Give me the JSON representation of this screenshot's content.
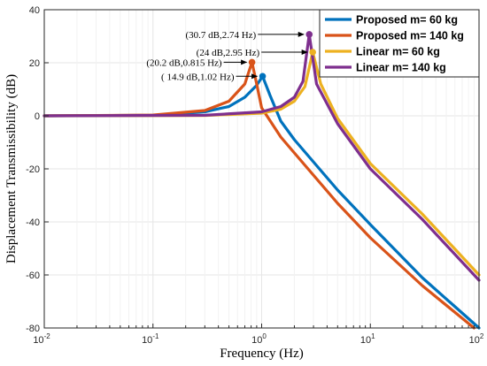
{
  "chart_data": {
    "type": "line",
    "xscale": "log",
    "xlim": [
      0.01,
      100
    ],
    "ylim": [
      -80,
      40
    ],
    "yticks": [
      -80,
      -60,
      -40,
      -20,
      0,
      20,
      40
    ],
    "xlabel": "Frequency  (Hz)",
    "ylabel": "Displacement Transmissibility (dB)",
    "grid": true,
    "legend_position": "top-right",
    "x_tick_labels": [
      {
        "base": "10",
        "exp": "-2"
      },
      {
        "base": "10",
        "exp": "-1"
      },
      {
        "base": "10",
        "exp": "0"
      },
      {
        "base": "10",
        "exp": "1"
      },
      {
        "base": "10",
        "exp": "2"
      }
    ],
    "series": [
      {
        "name": "Proposed m= 60 kg",
        "color": "#0072BD",
        "x": [
          0.01,
          0.1,
          0.3,
          0.5,
          0.7,
          0.9,
          1.02,
          1.2,
          1.5,
          2,
          5,
          10,
          30,
          100
        ],
        "y": [
          0,
          0.2,
          1.5,
          3.5,
          7,
          11.5,
          14.9,
          7.5,
          -2,
          -9,
          -28,
          -41,
          -61,
          -80
        ]
      },
      {
        "name": "Proposed m= 140 kg",
        "color": "#D95319",
        "x": [
          0.01,
          0.1,
          0.3,
          0.5,
          0.7,
          0.815,
          0.9,
          1,
          1.5,
          2,
          5,
          10,
          30,
          90
        ],
        "y": [
          0,
          0.3,
          2,
          5.5,
          12,
          20.2,
          12,
          3,
          -8,
          -14,
          -33,
          -46,
          -64,
          -80
        ]
      },
      {
        "name": "Linear m= 60 kg",
        "color": "#EDB120",
        "x": [
          0.01,
          0.3,
          1,
          1.5,
          2,
          2.5,
          2.95,
          3.5,
          5,
          10,
          30,
          100
        ],
        "y": [
          0,
          0.1,
          1,
          2.5,
          5.5,
          11,
          24,
          12,
          -1,
          -18,
          -37,
          -60
        ]
      },
      {
        "name": "Linear m= 140 kg",
        "color": "#7E2F8E",
        "x": [
          0.01,
          0.3,
          1,
          1.5,
          2,
          2.4,
          2.74,
          3.2,
          5,
          10,
          30,
          100
        ],
        "y": [
          0,
          0.2,
          1.5,
          3.5,
          7,
          13,
          30.7,
          12,
          -3,
          -20,
          -39,
          -62
        ]
      }
    ],
    "annotations": [
      {
        "text": "(30.7 dB,2.74 Hz)",
        "x": 2.74,
        "y": 30.7,
        "series": 3
      },
      {
        "text": "(24 dB,2.95 Hz)",
        "x": 2.95,
        "y": 24,
        "series": 2
      },
      {
        "text": "(20.2 dB,0.815 Hz)",
        "x": 0.815,
        "y": 20.2,
        "series": 1
      },
      {
        "text": "( 14.9 dB,1.02 Hz)",
        "x": 1.02,
        "y": 14.9,
        "series": 0
      }
    ]
  }
}
